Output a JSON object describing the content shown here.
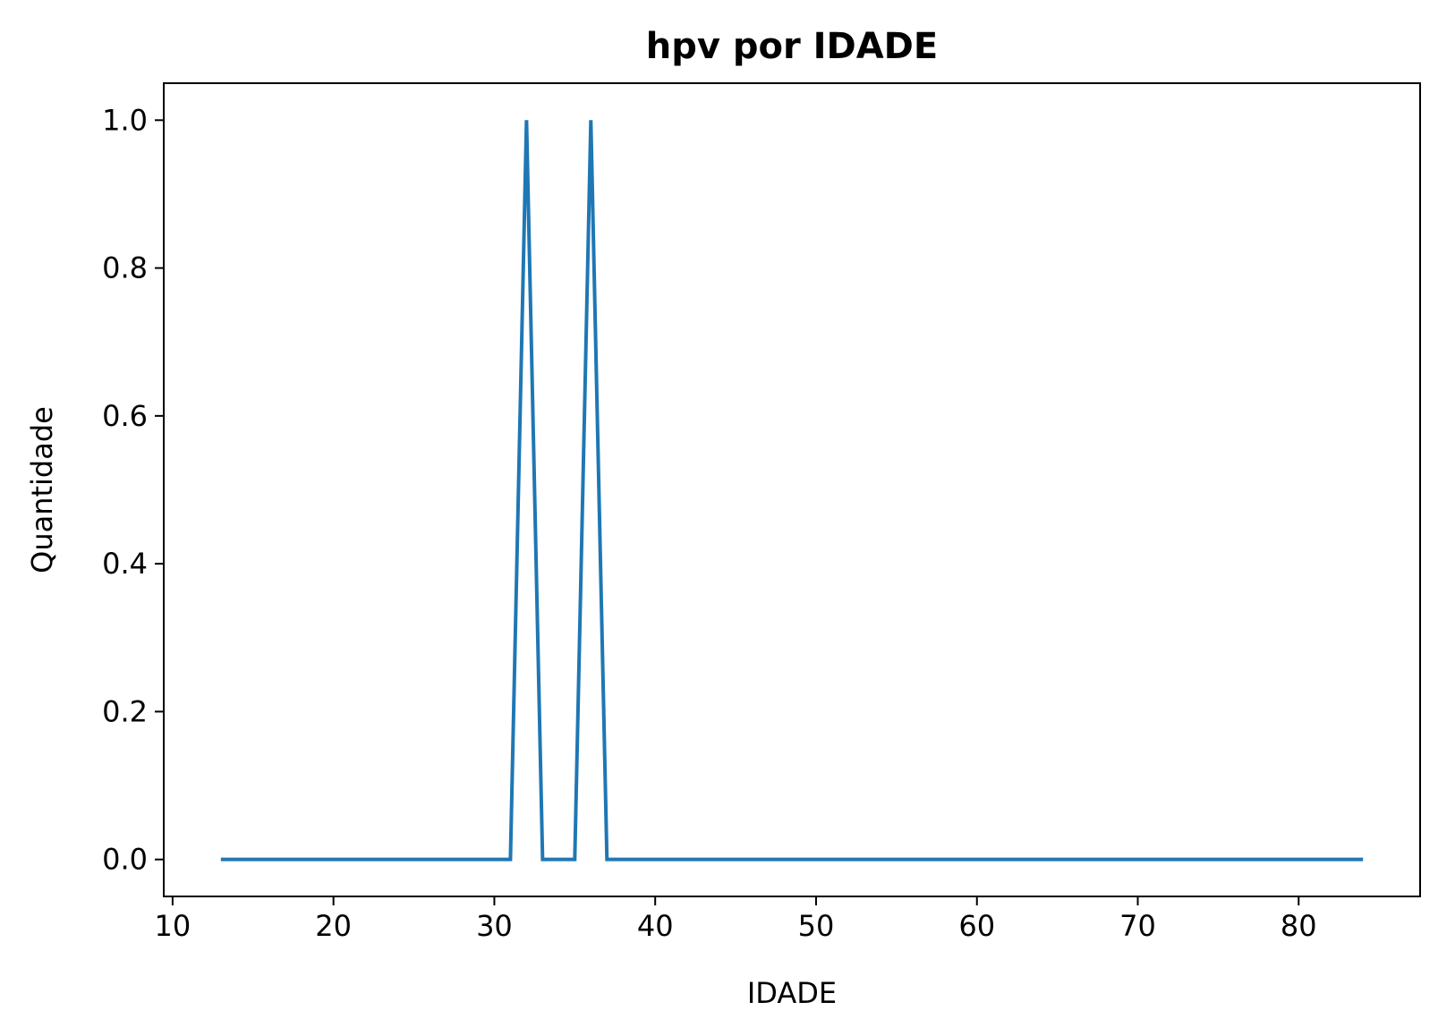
{
  "chart_data": {
    "type": "line",
    "title": "hpv por IDADE",
    "xlabel": "IDADE",
    "ylabel": "Quantidade",
    "xlim": [
      9.45,
      87.55
    ],
    "ylim": [
      -0.05,
      1.05
    ],
    "x_ticks": [
      10,
      20,
      30,
      40,
      50,
      60,
      70,
      80
    ],
    "x_tick_labels": [
      "10",
      "20",
      "30",
      "40",
      "50",
      "60",
      "70",
      "80"
    ],
    "y_ticks": [
      0.0,
      0.2,
      0.4,
      0.6,
      0.8,
      1.0
    ],
    "y_tick_labels": [
      "0.0",
      "0.2",
      "0.4",
      "0.6",
      "0.8",
      "1.0"
    ],
    "grid": false,
    "series": [
      {
        "color": "#1f77b4",
        "x": [
          13,
          14,
          15,
          16,
          17,
          18,
          19,
          20,
          21,
          22,
          23,
          24,
          25,
          26,
          27,
          28,
          29,
          30,
          31,
          32,
          33,
          34,
          35,
          36,
          37,
          38,
          39,
          40,
          41,
          42,
          43,
          44,
          45,
          46,
          47,
          48,
          49,
          50,
          51,
          52,
          53,
          54,
          55,
          56,
          57,
          58,
          59,
          60,
          61,
          62,
          63,
          64,
          65,
          66,
          67,
          68,
          69,
          70,
          71,
          72,
          73,
          74,
          75,
          76,
          77,
          78,
          79,
          80,
          81,
          82,
          83,
          84
        ],
        "y": [
          0,
          0,
          0,
          0,
          0,
          0,
          0,
          0,
          0,
          0,
          0,
          0,
          0,
          0,
          0,
          0,
          0,
          0,
          0,
          1,
          0,
          0,
          0,
          1,
          0,
          0,
          0,
          0,
          0,
          0,
          0,
          0,
          0,
          0,
          0,
          0,
          0,
          0,
          0,
          0,
          0,
          0,
          0,
          0,
          0,
          0,
          0,
          0,
          0,
          0,
          0,
          0,
          0,
          0,
          0,
          0,
          0,
          0,
          0,
          0,
          0,
          0,
          0,
          0,
          0,
          0,
          0,
          0,
          0,
          0,
          0,
          0
        ]
      }
    ]
  }
}
